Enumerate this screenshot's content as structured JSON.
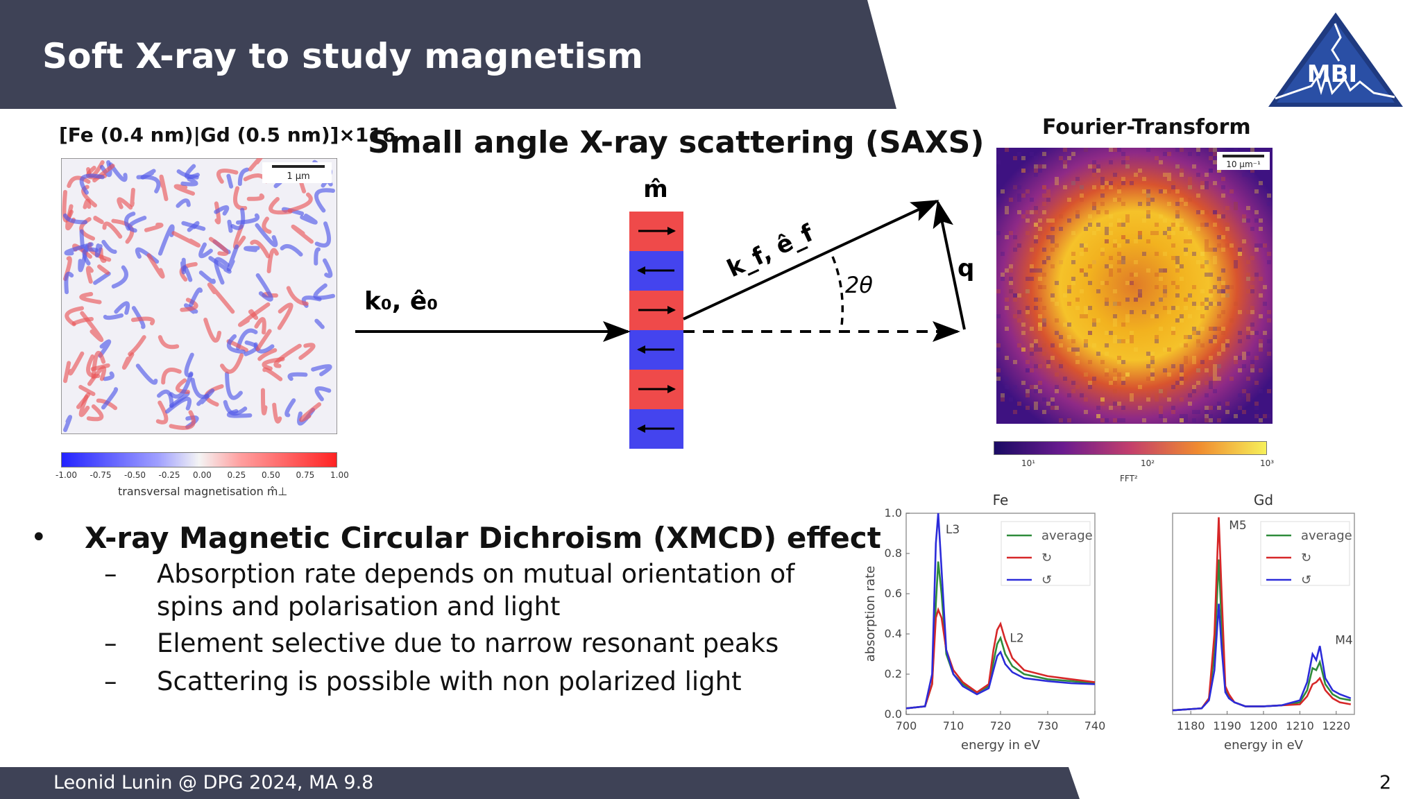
{
  "slide": {
    "title": "Soft X-ray to study magnetism",
    "logo_text": "MBI",
    "footer": "Leonid Lunin @ DPG 2024, MA 9.8",
    "page_number": "2"
  },
  "sample": {
    "label": "[Fe (0.4 nm)|Gd (0.5 nm)]×116",
    "scale_bar": "1 μm",
    "colorbar_ticks": [
      "-1.00",
      "-0.75",
      "-0.50",
      "-0.25",
      "0.00",
      "0.25",
      "0.50",
      "0.75",
      "1.00"
    ],
    "colorbar_label": "transversal magnetisation m̂⊥"
  },
  "saxs": {
    "title": "Small angle X-ray scattering (SAXS)",
    "m_label": "m̂",
    "incident_label": "k₀, ê₀",
    "scattered_label": "k_f, ê_f",
    "angle_label": "2θ",
    "q_label": "q"
  },
  "fourier": {
    "title": "Fourier-Transform",
    "scale_bar": "10 μm⁻¹",
    "colorbar_ticks": [
      "10¹",
      "10²",
      "10³"
    ],
    "colorbar_label": "FFT²"
  },
  "bullets": {
    "main": "X-ray Magnetic Circular Dichroism (XMCD) effect",
    "sub": [
      "Absorption rate depends on mutual orientation of",
      "spins and polarisation and light",
      "Element selective due to narrow resonant peaks",
      "Scattering is possible with non polarized light"
    ]
  },
  "chart_data": [
    {
      "type": "line",
      "title": "Fe",
      "xlabel": "energy in eV",
      "ylabel": "absorption rate",
      "xlim": [
        700,
        740
      ],
      "ylim": [
        0,
        1.0
      ],
      "xticks": [
        "700",
        "710",
        "720",
        "730",
        "740"
      ],
      "yticks": [
        "0.0",
        "0.2",
        "0.4",
        "0.6",
        "0.8",
        "1.0"
      ],
      "annotations": [
        "L3",
        "L2"
      ],
      "legend": [
        "average",
        "↻",
        "↺"
      ],
      "legend_position": "top-right",
      "colors": [
        "#2e8b3a",
        "#d62728",
        "#2b2bd9"
      ],
      "series": [
        {
          "x": [
            700,
            704,
            705.5,
            706.3,
            706.8,
            707.5,
            708.5,
            710,
            712,
            715,
            717.5,
            718.5,
            719.3,
            720,
            721,
            722.5,
            725,
            730,
            735,
            740
          ],
          "values": [
            0.03,
            0.04,
            0.15,
            0.55,
            0.76,
            0.6,
            0.3,
            0.2,
            0.15,
            0.11,
            0.14,
            0.26,
            0.35,
            0.38,
            0.3,
            0.24,
            0.2,
            0.175,
            0.165,
            0.155
          ]
        },
        {
          "x": [
            700,
            704,
            705.5,
            706.3,
            706.8,
            707.5,
            708.5,
            710,
            712,
            715,
            717.5,
            718.5,
            719.3,
            720,
            721,
            722.5,
            725,
            730,
            735,
            740
          ],
          "values": [
            0.03,
            0.04,
            0.15,
            0.48,
            0.52,
            0.48,
            0.32,
            0.22,
            0.16,
            0.11,
            0.15,
            0.32,
            0.42,
            0.45,
            0.37,
            0.28,
            0.22,
            0.19,
            0.175,
            0.16
          ]
        },
        {
          "x": [
            700,
            704,
            705.5,
            706.3,
            706.8,
            707.5,
            708.5,
            710,
            712,
            715,
            717.5,
            718.5,
            719.3,
            720,
            721,
            722.5,
            725,
            730,
            735,
            740
          ],
          "values": [
            0.03,
            0.04,
            0.2,
            0.85,
            1.0,
            0.72,
            0.32,
            0.2,
            0.14,
            0.1,
            0.13,
            0.22,
            0.29,
            0.31,
            0.25,
            0.21,
            0.18,
            0.165,
            0.155,
            0.15
          ]
        }
      ]
    },
    {
      "type": "line",
      "title": "Gd",
      "xlabel": "energy in eV",
      "ylabel": "",
      "xlim": [
        1175,
        1225
      ],
      "ylim": [
        0,
        1.0
      ],
      "xticks": [
        "1180",
        "1190",
        "1200",
        "1210",
        "1220"
      ],
      "annotations": [
        "M5",
        "M4"
      ],
      "legend": [
        "average",
        "↻",
        "↺"
      ],
      "legend_position": "top-right",
      "colors": [
        "#2e8b3a",
        "#d62728",
        "#2b2bd9"
      ],
      "series": [
        {
          "x": [
            1175,
            1183,
            1185,
            1186.5,
            1187.7,
            1188.5,
            1189.5,
            1190.5,
            1192,
            1195,
            1200,
            1205,
            1210,
            1212,
            1213.5,
            1214.5,
            1215.5,
            1217,
            1219,
            1221,
            1224
          ],
          "values": [
            0.02,
            0.03,
            0.08,
            0.3,
            0.77,
            0.45,
            0.12,
            0.09,
            0.06,
            0.04,
            0.04,
            0.045,
            0.06,
            0.12,
            0.23,
            0.22,
            0.26,
            0.15,
            0.1,
            0.08,
            0.07
          ]
        },
        {
          "x": [
            1175,
            1183,
            1185,
            1186.5,
            1187.7,
            1188.5,
            1189.5,
            1190.5,
            1192,
            1195,
            1200,
            1205,
            1210,
            1212,
            1213.5,
            1214.5,
            1215.5,
            1217,
            1219,
            1221,
            1224
          ],
          "values": [
            0.02,
            0.03,
            0.08,
            0.4,
            0.98,
            0.6,
            0.14,
            0.1,
            0.06,
            0.04,
            0.04,
            0.045,
            0.05,
            0.09,
            0.15,
            0.16,
            0.18,
            0.12,
            0.08,
            0.06,
            0.05
          ]
        },
        {
          "x": [
            1175,
            1183,
            1185,
            1186.5,
            1187.7,
            1188.5,
            1189.5,
            1190.5,
            1192,
            1195,
            1200,
            1205,
            1210,
            1212,
            1213.5,
            1214.5,
            1215.5,
            1217,
            1219,
            1221,
            1224
          ],
          "values": [
            0.02,
            0.03,
            0.07,
            0.22,
            0.55,
            0.33,
            0.11,
            0.08,
            0.06,
            0.04,
            0.04,
            0.045,
            0.07,
            0.16,
            0.3,
            0.27,
            0.34,
            0.18,
            0.12,
            0.1,
            0.08
          ]
        }
      ]
    }
  ]
}
